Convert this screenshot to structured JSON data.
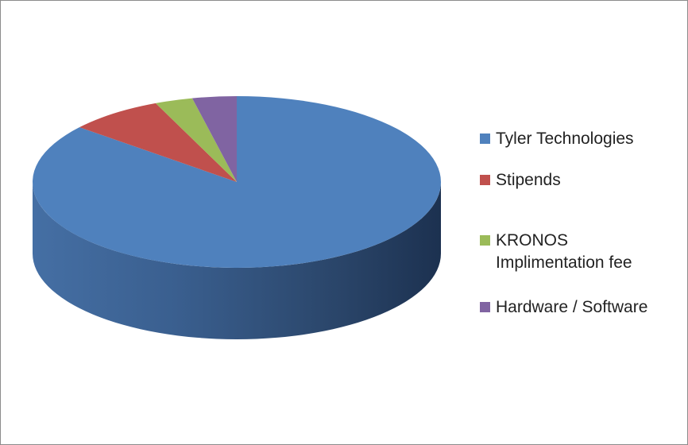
{
  "chart_data": {
    "type": "pie",
    "style": "3d",
    "title": "",
    "labels": [
      "Tyler Technologies",
      "Stipends",
      "KRONOS Implimentation fee",
      "Hardware / Software"
    ],
    "values": [
      86,
      7.5,
      3,
      3.5
    ],
    "colors": [
      "#4f81bd",
      "#c0504d",
      "#9bbb59",
      "#8064a2"
    ],
    "legend_position": "right"
  }
}
